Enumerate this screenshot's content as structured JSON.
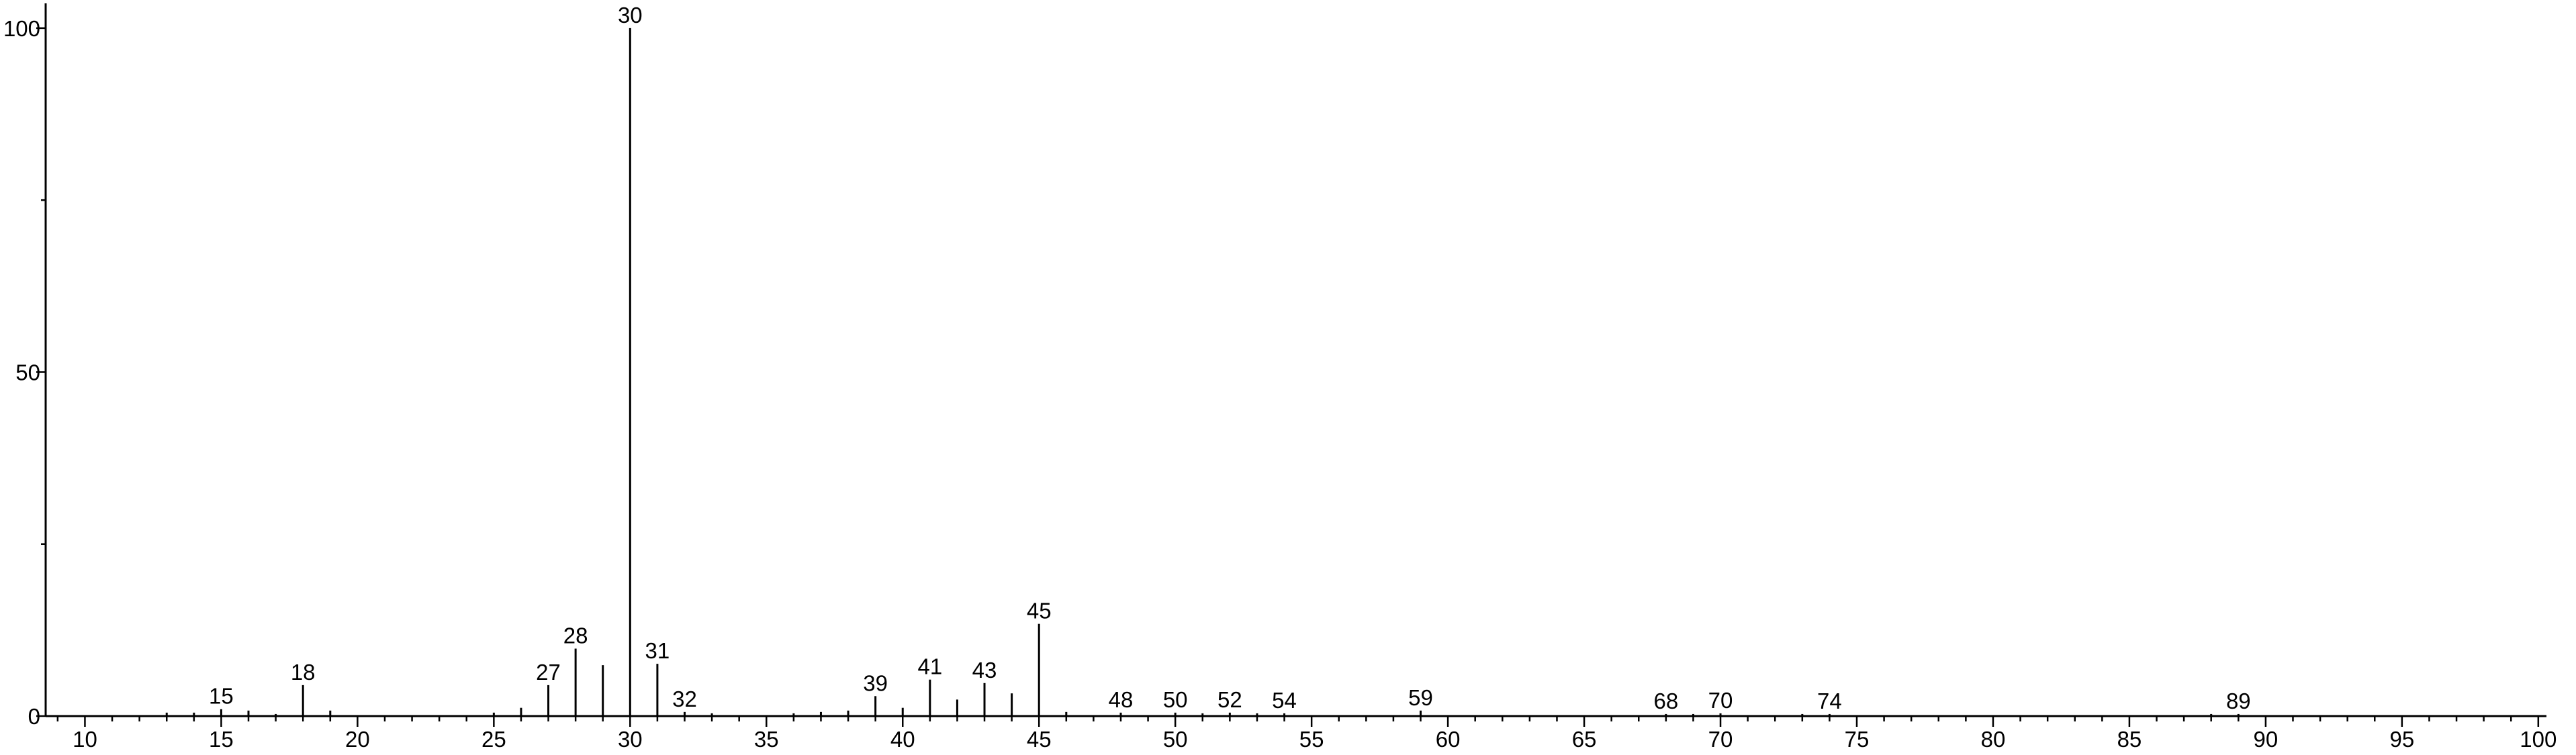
{
  "chart_data": {
    "type": "stem",
    "x": [
      13,
      14,
      15,
      16,
      17,
      18,
      19,
      25,
      26,
      27,
      28,
      29,
      30,
      31,
      32,
      33,
      36,
      37,
      38,
      39,
      40,
      41,
      42,
      43,
      44,
      45,
      46,
      48,
      50,
      51,
      52,
      53,
      54,
      59,
      68,
      69,
      70,
      73,
      74,
      88,
      89
    ],
    "values": [
      0.5,
      0.5,
      1,
      0.8,
      0.3,
      4.5,
      0.8,
      0.5,
      1.2,
      4.5,
      9.8,
      7.4,
      100,
      7.6,
      0.6,
      0.4,
      0.4,
      0.6,
      0.8,
      2.9,
      1.2,
      5.3,
      2.4,
      4.8,
      3.3,
      13.4,
      0.6,
      0.5,
      0.5,
      0.4,
      0.5,
      0.4,
      0.4,
      0.8,
      0.3,
      0.3,
      0.4,
      0.3,
      0.3,
      0.3,
      0.3
    ],
    "labeled": [
      false,
      false,
      true,
      false,
      false,
      true,
      false,
      false,
      false,
      true,
      true,
      false,
      true,
      true,
      true,
      false,
      false,
      false,
      false,
      true,
      false,
      true,
      false,
      true,
      false,
      true,
      false,
      true,
      true,
      false,
      true,
      false,
      true,
      true,
      true,
      false,
      true,
      false,
      true,
      false,
      true
    ],
    "color": "#000000",
    "xlim": [
      8.56,
      100.3
    ],
    "ylim": [
      0,
      103.6
    ],
    "xticks": [
      10,
      15,
      20,
      25,
      30,
      35,
      40,
      45,
      50,
      55,
      60,
      65,
      70,
      75,
      80,
      85,
      90,
      95,
      100
    ],
    "xminor": [
      9,
      11,
      12,
      13,
      14,
      16,
      17,
      18,
      19,
      21,
      22,
      23,
      24,
      26,
      27,
      28,
      29,
      31,
      32,
      33,
      34,
      36,
      37,
      38,
      39,
      41,
      42,
      43,
      44,
      46,
      47,
      48,
      49,
      51,
      52,
      53,
      54,
      56,
      57,
      58,
      59,
      61,
      62,
      63,
      64,
      66,
      67,
      68,
      69,
      71,
      72,
      73,
      74,
      76,
      77,
      78,
      79,
      81,
      82,
      83,
      84,
      86,
      87,
      88,
      89,
      91,
      92,
      93,
      94,
      96,
      97,
      98,
      99
    ],
    "yticks": [
      0,
      50,
      100
    ],
    "yminor": [
      25,
      75
    ]
  }
}
